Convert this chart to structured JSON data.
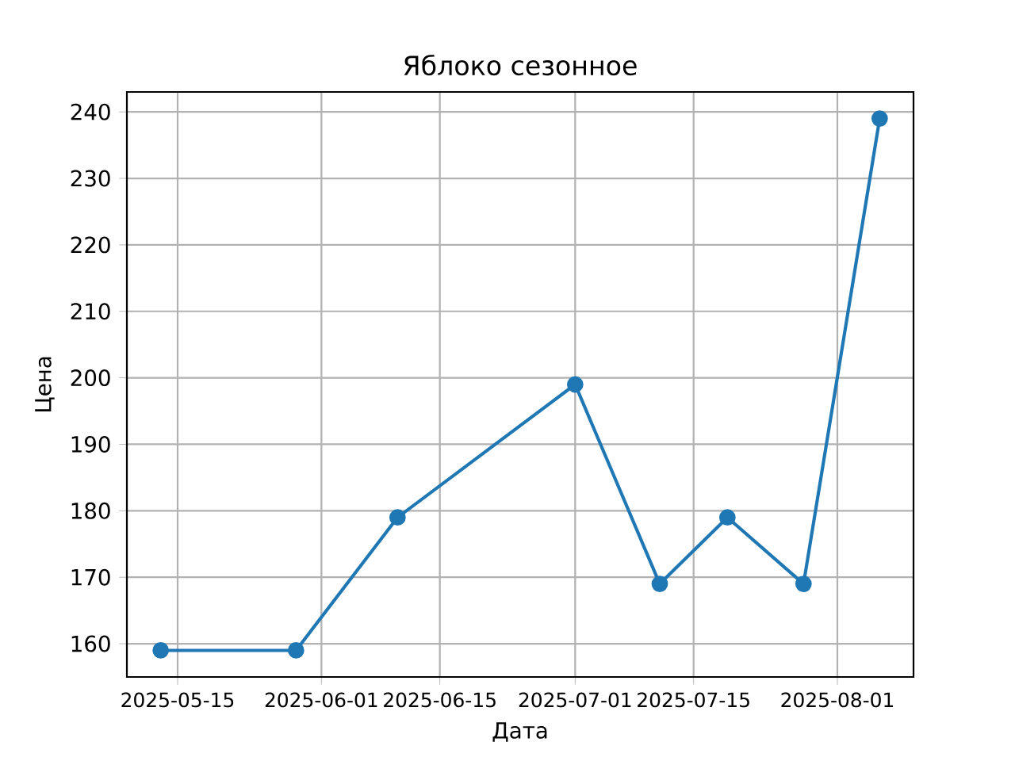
{
  "chart_data": {
    "type": "line",
    "title": "Яблоко сезонное",
    "xlabel": "Дата",
    "ylabel": "Цена",
    "x": [
      "2025-05-13",
      "2025-05-29",
      "2025-06-10",
      "2025-07-01",
      "2025-07-11",
      "2025-07-19",
      "2025-07-28",
      "2025-08-06"
    ],
    "series": [
      {
        "color": "#1f77b4",
        "values": [
          159,
          159,
          179,
          199,
          169,
          179,
          169,
          239
        ]
      }
    ],
    "xlim": [
      "2025-05-09",
      "2025-08-10"
    ],
    "xticks": [
      "2025-05-15",
      "2025-06-01",
      "2025-06-15",
      "2025-07-01",
      "2025-07-15",
      "2025-08-01"
    ],
    "ylim": [
      155,
      243
    ],
    "yticks": [
      160,
      170,
      180,
      190,
      200,
      210,
      220,
      230,
      240
    ],
    "grid": true,
    "marker": "circle",
    "line_style": "solid"
  }
}
